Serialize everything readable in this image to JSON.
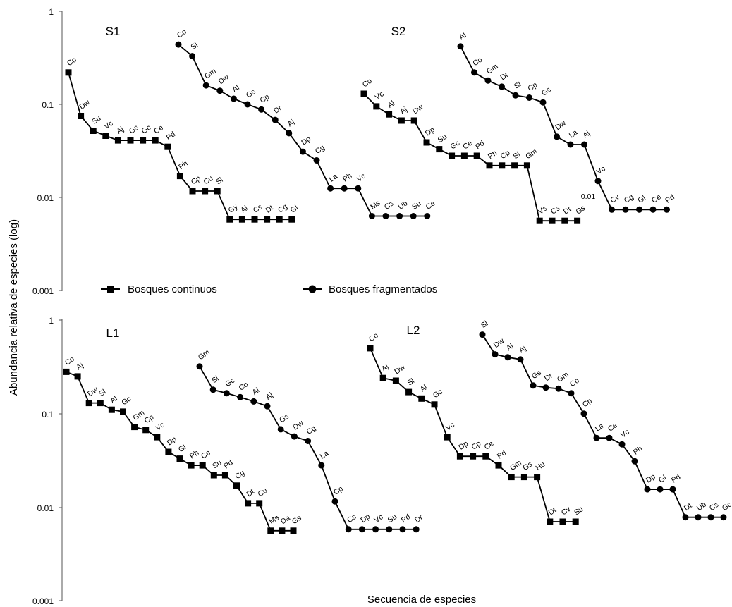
{
  "chart_data": {
    "type": "line",
    "ylabel": "Abundancia relativa de especies (log)",
    "xlabel": "Secuencia de especies",
    "yscale": "log",
    "ylim": [
      0.001,
      1
    ],
    "yticks": [
      "1",
      "0.1",
      "0.01",
      "0.001"
    ],
    "legend": {
      "placement": "center",
      "entries": [
        {
          "label": "Bosques continuos",
          "marker": "square"
        },
        {
          "label": "Bosques fragmentados",
          "marker": "circle"
        }
      ]
    },
    "stray_labels": [
      "0.01"
    ],
    "panels": [
      {
        "title": "S1",
        "series": [
          {
            "type": "continuos",
            "species": [
              "Co",
              "Dw",
              "Su",
              "Vc",
              "Aj",
              "Gs",
              "Gc",
              "Ce",
              "Pd",
              "Ph",
              "Cp",
              "Cu",
              "Sl",
              "Gy",
              "Al",
              "Cs",
              "Dt",
              "Cg",
              "Gl"
            ],
            "values": [
              0.22,
              0.075,
              0.052,
              0.046,
              0.041,
              0.041,
              0.041,
              0.041,
              0.035,
              0.017,
              0.0117,
              0.0117,
              0.0117,
              0.0058,
              0.0058,
              0.0058,
              0.0058,
              0.0058,
              0.0058
            ]
          },
          {
            "type": "fragmentados",
            "species": [
              "Co",
              "Sl",
              "Gm",
              "Dw",
              "Al",
              "Gs",
              "Cp",
              "Dr",
              "Aj",
              "Dp",
              "Cg",
              "La",
              "Ph",
              "Vc",
              "Ms",
              "Cs",
              "Ub",
              "Su",
              "Ce"
            ],
            "values": [
              0.44,
              0.33,
              0.16,
              0.14,
              0.115,
              0.1,
              0.088,
              0.068,
              0.049,
              0.031,
              0.025,
              0.0125,
              0.0125,
              0.0125,
              0.0063,
              0.0063,
              0.0063,
              0.0063,
              0.0063
            ]
          }
        ]
      },
      {
        "title": "S2",
        "series": [
          {
            "type": "continuos",
            "species": [
              "Co",
              "Vc",
              "Al",
              "Aj",
              "Dw",
              "Dp",
              "Su",
              "Gc",
              "Ce",
              "Pd",
              "Ph",
              "Cp",
              "Sl",
              "Gm",
              "Vs",
              "Cs",
              "Dt",
              "Gs"
            ],
            "values": [
              0.13,
              0.095,
              0.078,
              0.067,
              0.067,
              0.039,
              0.033,
              0.028,
              0.028,
              0.028,
              0.022,
              0.022,
              0.022,
              0.022,
              0.0056,
              0.0056,
              0.0056,
              0.0056
            ]
          },
          {
            "type": "fragmentados",
            "species": [
              "Al",
              "Co",
              "Gm",
              "Dr",
              "Sl",
              "Cp",
              "Gs",
              "Dw",
              "La",
              "Aj",
              "Vc",
              "Cv",
              "Cg",
              "Gl",
              "Ce",
              "Pd"
            ],
            "values": [
              0.42,
              0.22,
              0.18,
              0.155,
              0.125,
              0.118,
              0.105,
              0.045,
              0.037,
              0.037,
              0.015,
              0.0074,
              0.0074,
              0.0074,
              0.0074,
              0.0074
            ]
          }
        ]
      },
      {
        "title": "L1",
        "series": [
          {
            "type": "continuos",
            "species": [
              "Co",
              "Aj",
              "Dw",
              "Sl",
              "Al",
              "Gc",
              "Gm",
              "Cp",
              "Vc",
              "Dp",
              "Gl",
              "Ph",
              "Ce",
              "Su",
              "Pd",
              "Cg",
              "Dt",
              "Cu",
              "Ms",
              "Da",
              "Gs"
            ],
            "values": [
              0.28,
              0.25,
              0.13,
              0.13,
              0.11,
              0.105,
              0.072,
              0.067,
              0.056,
              0.039,
              0.033,
              0.028,
              0.028,
              0.022,
              0.022,
              0.017,
              0.011,
              0.011,
              0.0056,
              0.0056,
              0.0056
            ]
          },
          {
            "type": "fragmentados",
            "species": [
              "Gm",
              "Sl",
              "Gc",
              "Co",
              "Al",
              "Aj",
              "Gs",
              "Dw",
              "Cg",
              "La",
              "Cp",
              "Cs",
              "Dp",
              "Vc",
              "Su",
              "Pd",
              "Dr"
            ],
            "values": [
              0.32,
              0.18,
              0.165,
              0.15,
              0.135,
              0.12,
              0.068,
              0.057,
              0.051,
              0.028,
              0.0115,
              0.0058,
              0.0058,
              0.0058,
              0.0058,
              0.0058,
              0.0058
            ]
          }
        ]
      },
      {
        "title": "L2",
        "series": [
          {
            "type": "continuos",
            "species": [
              "Co",
              "Aj",
              "Dw",
              "Sl",
              "Al",
              "Gc",
              "Vc",
              "Dp",
              "Cp",
              "Ce",
              "Pd",
              "Gm",
              "Gs",
              "Hu",
              "Dt",
              "Cv",
              "Su"
            ],
            "values": [
              0.5,
              0.24,
              0.225,
              0.17,
              0.145,
              0.125,
              0.056,
              0.035,
              0.035,
              0.035,
              0.028,
              0.021,
              0.021,
              0.021,
              0.007,
              0.007,
              0.007
            ]
          },
          {
            "type": "fragmentados",
            "species": [
              "Sl",
              "Dw",
              "Al",
              "Aj",
              "Gs",
              "Dr",
              "Gm",
              "Co",
              "Cp",
              "La",
              "Ce",
              "Vc",
              "Ph",
              "Dp",
              "Gl",
              "Pd",
              "Dt",
              "Ub",
              "Cs",
              "Gc"
            ],
            "values": [
              0.7,
              0.43,
              0.4,
              0.38,
              0.2,
              0.19,
              0.185,
              0.165,
              0.1,
              0.055,
              0.055,
              0.047,
              0.031,
              0.0155,
              0.0155,
              0.0155,
              0.0078,
              0.0078,
              0.0078,
              0.0078
            ]
          }
        ]
      }
    ]
  }
}
